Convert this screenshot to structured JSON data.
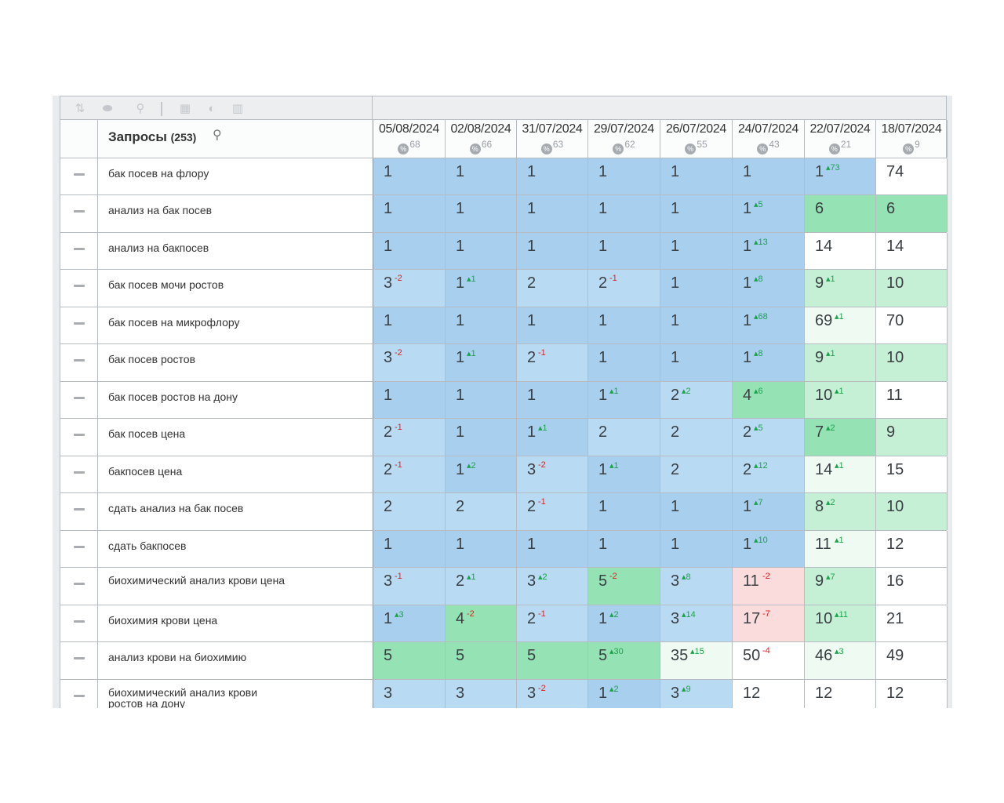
{
  "toolbar": {
    "icons": [
      "sort-icon",
      "toggle-icon",
      "link-icon",
      "calculator-icon",
      "contrast-icon",
      "chart-icon"
    ]
  },
  "header": {
    "queries_label": "Запросы",
    "queries_count": "(253)",
    "search_icon": "search-icon"
  },
  "dates": [
    {
      "date": "05/08/2024",
      "pct": "68"
    },
    {
      "date": "02/08/2024",
      "pct": "66"
    },
    {
      "date": "31/07/2024",
      "pct": "63"
    },
    {
      "date": "29/07/2024",
      "pct": "62"
    },
    {
      "date": "26/07/2024",
      "pct": "55"
    },
    {
      "date": "24/07/2024",
      "pct": "43"
    },
    {
      "date": "22/07/2024",
      "pct": "21"
    },
    {
      "date": "18/07/2024",
      "pct": "9"
    }
  ],
  "rows": [
    {
      "query": "бак посев на флору",
      "cells": [
        {
          "v": "1",
          "d": "",
          "c": "blue"
        },
        {
          "v": "1",
          "d": "",
          "c": "blue"
        },
        {
          "v": "1",
          "d": "",
          "c": "blue"
        },
        {
          "v": "1",
          "d": "",
          "c": "blue"
        },
        {
          "v": "1",
          "d": "",
          "c": "blue"
        },
        {
          "v": "1",
          "d": "",
          "c": "blue"
        },
        {
          "v": "1",
          "d": "73",
          "dir": "up",
          "c": "blue"
        },
        {
          "v": "74",
          "d": "",
          "c": "white"
        }
      ]
    },
    {
      "query": "анализ на бак посев",
      "cells": [
        {
          "v": "1",
          "d": "",
          "c": "blue"
        },
        {
          "v": "1",
          "d": "",
          "c": "blue"
        },
        {
          "v": "1",
          "d": "",
          "c": "blue"
        },
        {
          "v": "1",
          "d": "",
          "c": "blue"
        },
        {
          "v": "1",
          "d": "",
          "c": "blue"
        },
        {
          "v": "1",
          "d": "5",
          "dir": "up",
          "c": "blue"
        },
        {
          "v": "6",
          "d": "",
          "c": "green"
        },
        {
          "v": "6",
          "d": "",
          "c": "green"
        }
      ]
    },
    {
      "query": "анализ на бакпосев",
      "cells": [
        {
          "v": "1",
          "d": "",
          "c": "blue"
        },
        {
          "v": "1",
          "d": "",
          "c": "blue"
        },
        {
          "v": "1",
          "d": "",
          "c": "blue"
        },
        {
          "v": "1",
          "d": "",
          "c": "blue"
        },
        {
          "v": "1",
          "d": "",
          "c": "blue"
        },
        {
          "v": "1",
          "d": "13",
          "dir": "up",
          "c": "blue"
        },
        {
          "v": "14",
          "d": "",
          "c": "white"
        },
        {
          "v": "14",
          "d": "",
          "c": "white"
        }
      ]
    },
    {
      "query": "бак посев мочи ростов",
      "cells": [
        {
          "v": "3",
          "d": "2",
          "dir": "dn",
          "c": "lblue"
        },
        {
          "v": "1",
          "d": "1",
          "dir": "up",
          "c": "blue"
        },
        {
          "v": "2",
          "d": "",
          "c": "lblue"
        },
        {
          "v": "2",
          "d": "1",
          "dir": "dn",
          "c": "lblue"
        },
        {
          "v": "1",
          "d": "",
          "c": "blue"
        },
        {
          "v": "1",
          "d": "8",
          "dir": "up",
          "c": "blue"
        },
        {
          "v": "9",
          "d": "1",
          "dir": "up",
          "c": "lgreen"
        },
        {
          "v": "10",
          "d": "",
          "c": "lgreen"
        }
      ]
    },
    {
      "query": "бак посев на микрофлору",
      "cells": [
        {
          "v": "1",
          "d": "",
          "c": "blue"
        },
        {
          "v": "1",
          "d": "",
          "c": "blue"
        },
        {
          "v": "1",
          "d": "",
          "c": "blue"
        },
        {
          "v": "1",
          "d": "",
          "c": "blue"
        },
        {
          "v": "1",
          "d": "",
          "c": "blue"
        },
        {
          "v": "1",
          "d": "68",
          "dir": "up",
          "c": "blue"
        },
        {
          "v": "69",
          "d": "1",
          "dir": "up",
          "c": "pgreen"
        },
        {
          "v": "70",
          "d": "",
          "c": "white"
        }
      ]
    },
    {
      "query": "бак посев ростов",
      "cells": [
        {
          "v": "3",
          "d": "2",
          "dir": "dn",
          "c": "lblue"
        },
        {
          "v": "1",
          "d": "1",
          "dir": "up",
          "c": "blue"
        },
        {
          "v": "2",
          "d": "1",
          "dir": "dn",
          "c": "lblue"
        },
        {
          "v": "1",
          "d": "",
          "c": "blue"
        },
        {
          "v": "1",
          "d": "",
          "c": "blue"
        },
        {
          "v": "1",
          "d": "8",
          "dir": "up",
          "c": "blue"
        },
        {
          "v": "9",
          "d": "1",
          "dir": "up",
          "c": "lgreen"
        },
        {
          "v": "10",
          "d": "",
          "c": "lgreen"
        }
      ]
    },
    {
      "query": "бак посев ростов на дону",
      "cells": [
        {
          "v": "1",
          "d": "",
          "c": "blue"
        },
        {
          "v": "1",
          "d": "",
          "c": "blue"
        },
        {
          "v": "1",
          "d": "",
          "c": "blue"
        },
        {
          "v": "1",
          "d": "1",
          "dir": "up",
          "c": "blue"
        },
        {
          "v": "2",
          "d": "2",
          "dir": "up",
          "c": "lblue"
        },
        {
          "v": "4",
          "d": "6",
          "dir": "up",
          "c": "green"
        },
        {
          "v": "10",
          "d": "1",
          "dir": "up",
          "c": "lgreen"
        },
        {
          "v": "11",
          "d": "",
          "c": "white"
        }
      ]
    },
    {
      "query": "бак посев цена",
      "cells": [
        {
          "v": "2",
          "d": "1",
          "dir": "dn",
          "c": "lblue"
        },
        {
          "v": "1",
          "d": "",
          "c": "blue"
        },
        {
          "v": "1",
          "d": "1",
          "dir": "up",
          "c": "blue"
        },
        {
          "v": "2",
          "d": "",
          "c": "lblue"
        },
        {
          "v": "2",
          "d": "",
          "c": "lblue"
        },
        {
          "v": "2",
          "d": "5",
          "dir": "up",
          "c": "lblue"
        },
        {
          "v": "7",
          "d": "2",
          "dir": "up",
          "c": "green"
        },
        {
          "v": "9",
          "d": "",
          "c": "lgreen"
        }
      ]
    },
    {
      "query": "бакпосев цена",
      "cells": [
        {
          "v": "2",
          "d": "1",
          "dir": "dn",
          "c": "lblue"
        },
        {
          "v": "1",
          "d": "2",
          "dir": "up",
          "c": "blue"
        },
        {
          "v": "3",
          "d": "2",
          "dir": "dn",
          "c": "lblue"
        },
        {
          "v": "1",
          "d": "1",
          "dir": "up",
          "c": "blue"
        },
        {
          "v": "2",
          "d": "",
          "c": "lblue"
        },
        {
          "v": "2",
          "d": "12",
          "dir": "up",
          "c": "lblue"
        },
        {
          "v": "14",
          "d": "1",
          "dir": "up",
          "c": "pgreen"
        },
        {
          "v": "15",
          "d": "",
          "c": "white"
        }
      ]
    },
    {
      "query": "сдать анализ на бак посев",
      "cells": [
        {
          "v": "2",
          "d": "",
          "c": "lblue"
        },
        {
          "v": "2",
          "d": "",
          "c": "lblue"
        },
        {
          "v": "2",
          "d": "1",
          "dir": "dn",
          "c": "lblue"
        },
        {
          "v": "1",
          "d": "",
          "c": "blue"
        },
        {
          "v": "1",
          "d": "",
          "c": "blue"
        },
        {
          "v": "1",
          "d": "7",
          "dir": "up",
          "c": "blue"
        },
        {
          "v": "8",
          "d": "2",
          "dir": "up",
          "c": "lgreen"
        },
        {
          "v": "10",
          "d": "",
          "c": "lgreen"
        }
      ]
    },
    {
      "query": "сдать бакпосев",
      "cells": [
        {
          "v": "1",
          "d": "",
          "c": "blue"
        },
        {
          "v": "1",
          "d": "",
          "c": "blue"
        },
        {
          "v": "1",
          "d": "",
          "c": "blue"
        },
        {
          "v": "1",
          "d": "",
          "c": "blue"
        },
        {
          "v": "1",
          "d": "",
          "c": "blue"
        },
        {
          "v": "1",
          "d": "10",
          "dir": "up",
          "c": "blue"
        },
        {
          "v": "11",
          "d": "1",
          "dir": "up",
          "c": "pgreen"
        },
        {
          "v": "12",
          "d": "",
          "c": "white"
        }
      ]
    },
    {
      "query": "биохимический анализ крови цена",
      "two": true,
      "cells": [
        {
          "v": "3",
          "d": "1",
          "dir": "dn",
          "c": "lblue"
        },
        {
          "v": "2",
          "d": "1",
          "dir": "up",
          "c": "lblue"
        },
        {
          "v": "3",
          "d": "2",
          "dir": "up",
          "c": "lblue"
        },
        {
          "v": "5",
          "d": "2",
          "dir": "dn",
          "c": "green"
        },
        {
          "v": "3",
          "d": "8",
          "dir": "up",
          "c": "lblue"
        },
        {
          "v": "11",
          "d": "2",
          "dir": "dn",
          "c": "pink"
        },
        {
          "v": "9",
          "d": "7",
          "dir": "up",
          "c": "lgreen"
        },
        {
          "v": "16",
          "d": "",
          "c": "white"
        }
      ]
    },
    {
      "query": "биохимия крови цена",
      "cells": [
        {
          "v": "1",
          "d": "3",
          "dir": "up",
          "c": "blue"
        },
        {
          "v": "4",
          "d": "2",
          "dir": "dn",
          "c": "green"
        },
        {
          "v": "2",
          "d": "1",
          "dir": "dn",
          "c": "lblue"
        },
        {
          "v": "1",
          "d": "2",
          "dir": "up",
          "c": "blue"
        },
        {
          "v": "3",
          "d": "14",
          "dir": "up",
          "c": "lblue"
        },
        {
          "v": "17",
          "d": "7",
          "dir": "dn",
          "c": "pink"
        },
        {
          "v": "10",
          "d": "11",
          "dir": "up",
          "c": "lgreen"
        },
        {
          "v": "21",
          "d": "",
          "c": "white"
        }
      ]
    },
    {
      "query": "анализ крови на биохимию",
      "cells": [
        {
          "v": "5",
          "d": "",
          "c": "green"
        },
        {
          "v": "5",
          "d": "",
          "c": "green"
        },
        {
          "v": "5",
          "d": "",
          "c": "green"
        },
        {
          "v": "5",
          "d": "30",
          "dir": "up",
          "c": "green"
        },
        {
          "v": "35",
          "d": "15",
          "dir": "up",
          "c": "pgreen"
        },
        {
          "v": "50",
          "d": "4",
          "dir": "dn",
          "c": "white"
        },
        {
          "v": "46",
          "d": "3",
          "dir": "up",
          "c": "pgreen"
        },
        {
          "v": "49",
          "d": "",
          "c": "white"
        }
      ]
    },
    {
      "query": "биохимический анализ крови ростов на дону",
      "two": true,
      "cells": [
        {
          "v": "3",
          "d": "",
          "c": "lblue"
        },
        {
          "v": "3",
          "d": "",
          "c": "lblue"
        },
        {
          "v": "3",
          "d": "2",
          "dir": "dn",
          "c": "lblue"
        },
        {
          "v": "1",
          "d": "2",
          "dir": "up",
          "c": "blue"
        },
        {
          "v": "3",
          "d": "9",
          "dir": "up",
          "c": "lblue"
        },
        {
          "v": "12",
          "d": "",
          "c": "white"
        },
        {
          "v": "12",
          "d": "",
          "c": "white"
        },
        {
          "v": "12",
          "d": "",
          "c": "white"
        }
      ]
    }
  ]
}
